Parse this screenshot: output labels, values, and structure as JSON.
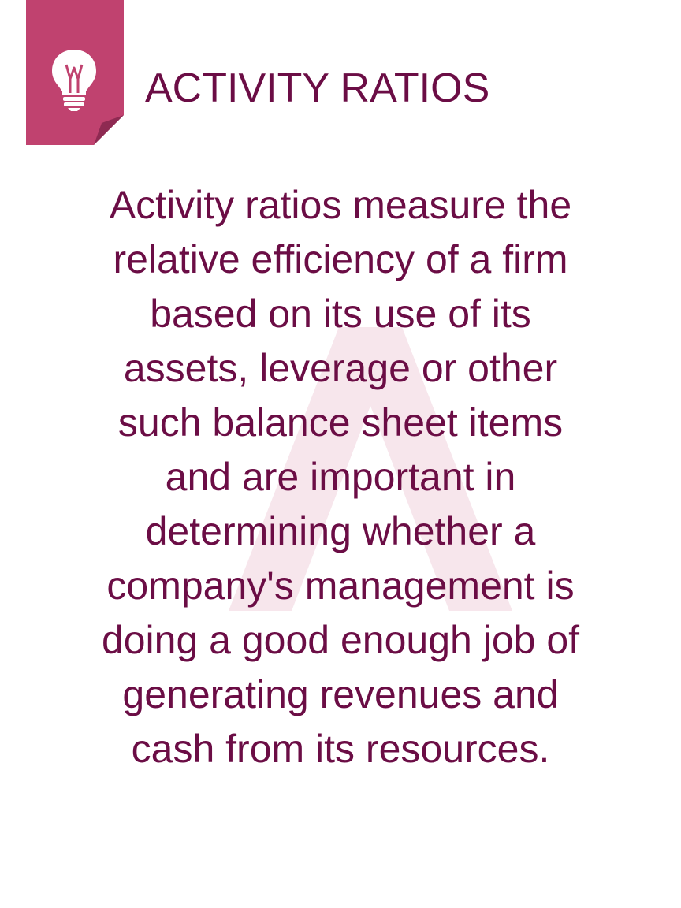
{
  "header": {
    "title": "ACTIVITY RATIOS",
    "icon": "lightbulb-icon"
  },
  "body": {
    "lines": [
      " Activity ratios measure the",
      "relative efficiency of a firm",
      "based on its use of its",
      "assets, leverage or other",
      "such balance sheet items",
      "and are important in",
      "determining whether a",
      "company's management is",
      "doing a good enough job of",
      "generating revenues and",
      "cash from its resources."
    ]
  },
  "colors": {
    "text": "#6b0d45",
    "tag": "#c0426f",
    "tag_fold": "#8e2a52",
    "watermark": "#f6e4ea"
  }
}
